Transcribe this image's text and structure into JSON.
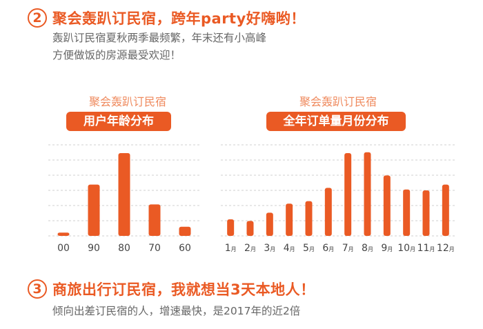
{
  "section2": {
    "number": "2",
    "title": "聚会轰趴订民宿，跨年party好嗨哟！",
    "desc_line1": "轰趴订民宿夏秋两季最频繁，年末还有小高峰",
    "desc_line2": "方便做饭的房源最受欢迎！"
  },
  "section3": {
    "number": "3",
    "title": "商旅出行订民宿，我就想当3天本地人！",
    "desc_line1": "倾向出差订民宿的人，增速最快，是2017年的近2倍"
  },
  "colors": {
    "accent": "#ea5a24",
    "bar": "#ea5a24",
    "grid": "#cfcfcf"
  },
  "chart_data": [
    {
      "type": "bar",
      "subtitle": "聚会轰趴订民宿",
      "title": "用户年龄分布",
      "categories": [
        "00",
        "90",
        "80",
        "70",
        "60"
      ],
      "values": [
        4,
        62,
        100,
        38,
        11
      ],
      "ylim": [
        0,
        110
      ],
      "grid": true
    },
    {
      "type": "bar",
      "subtitle": "聚会轰趴订民宿",
      "title": "全年订单量月份分布",
      "categories": [
        "1月",
        "2月",
        "3月",
        "4月",
        "5月",
        "6月",
        "7月",
        "8月",
        "9月",
        "10月",
        "11月",
        "12月"
      ],
      "values": [
        20,
        18,
        28,
        39,
        42,
        58,
        100,
        101,
        73,
        56,
        55,
        62
      ],
      "ylim": [
        0,
        110
      ],
      "grid": true
    }
  ]
}
